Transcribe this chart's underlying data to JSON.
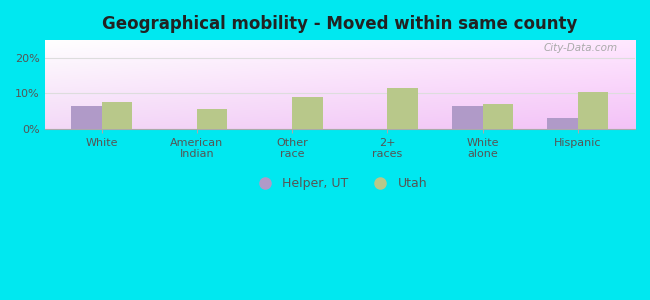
{
  "title": "Geographical mobility - Moved within same county",
  "categories": [
    "White",
    "American\nIndian",
    "Other\nrace",
    "2+\nraces",
    "White\nalone",
    "Hispanic"
  ],
  "helper_values": [
    6.5,
    0,
    0,
    0,
    6.5,
    3.0
  ],
  "utah_values": [
    7.5,
    5.5,
    9.0,
    11.5,
    7.0,
    10.5
  ],
  "helper_color": "#b09ac8",
  "utah_color": "#b8c88a",
  "ylim": [
    0,
    25
  ],
  "yticks": [
    0,
    10,
    20
  ],
  "ytick_labels": [
    "0%",
    "10%",
    "20%"
  ],
  "background_outer": "#00e8f0",
  "plot_bg_top_left": "#c8eec8",
  "plot_bg_top_right": "#e8f8f8",
  "plot_bg_bottom": "#f0fff8",
  "bar_width": 0.32,
  "legend_labels": [
    "Helper, UT",
    "Utah"
  ],
  "watermark": "City-Data.com",
  "title_fontsize": 12,
  "tick_fontsize": 8,
  "legend_fontsize": 9,
  "title_color": "#222222",
  "tick_color": "#555555",
  "grid_color": "#dddddd"
}
